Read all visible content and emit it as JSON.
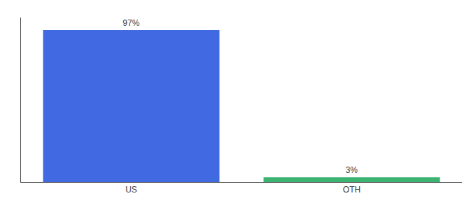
{
  "chart_data": {
    "type": "bar",
    "categories": [
      "US",
      "OTH"
    ],
    "values": [
      97,
      3
    ],
    "value_labels": [
      "97%",
      "3%"
    ],
    "data_labels": true,
    "colors": [
      "#4169E1",
      "#3CB371"
    ],
    "ylim": [
      0,
      105
    ],
    "tick_labels": "x",
    "grid": false
  }
}
